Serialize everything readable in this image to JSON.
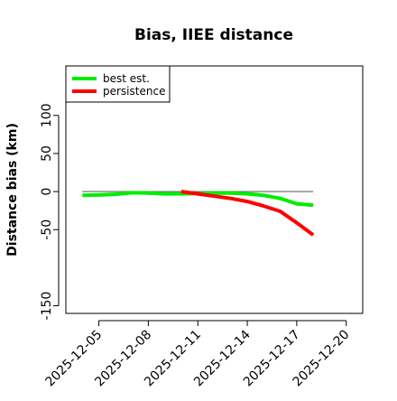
{
  "chart_data": {
    "type": "line",
    "title": "Bias, IIEE distance",
    "xlabel": "",
    "ylabel": "Distance bias (km)",
    "x_is_date": true,
    "xlim": [
      "2025-12-03",
      "2025-12-21"
    ],
    "ylim": [
      -160,
      165
    ],
    "xticks": [
      "2025-12-05",
      "2025-12-08",
      "2025-12-11",
      "2025-12-14",
      "2025-12-17",
      "2025-12-20"
    ],
    "yticks": [
      -150,
      -50,
      0,
      50,
      100
    ],
    "reference_line": 0,
    "grid": false,
    "legend": "top-left",
    "series": [
      {
        "name": "best est.",
        "color": "#00ee00",
        "points": [
          [
            "2025-12-04",
            -5
          ],
          [
            "2025-12-05",
            -4.5
          ],
          [
            "2025-12-06",
            -3.5
          ],
          [
            "2025-12-07",
            -1.5
          ],
          [
            "2025-12-08",
            -2
          ],
          [
            "2025-12-09",
            -3
          ],
          [
            "2025-12-10",
            -3
          ],
          [
            "2025-12-11",
            -2.5
          ],
          [
            "2025-12-12",
            -2
          ],
          [
            "2025-12-13",
            -2
          ],
          [
            "2025-12-14",
            -3
          ],
          [
            "2025-12-15",
            -5
          ],
          [
            "2025-12-16",
            -9
          ],
          [
            "2025-12-17",
            -16
          ],
          [
            "2025-12-18",
            -18
          ]
        ]
      },
      {
        "name": "persistence",
        "color": "#ff0000",
        "points": [
          [
            "2025-12-10",
            0
          ],
          [
            "2025-12-11",
            -3
          ],
          [
            "2025-12-12",
            -6
          ],
          [
            "2025-12-13",
            -9
          ],
          [
            "2025-12-14",
            -13
          ],
          [
            "2025-12-15",
            -19
          ],
          [
            "2025-12-16",
            -26
          ],
          [
            "2025-12-17",
            -41
          ],
          [
            "2025-12-18",
            -57
          ]
        ]
      }
    ]
  }
}
